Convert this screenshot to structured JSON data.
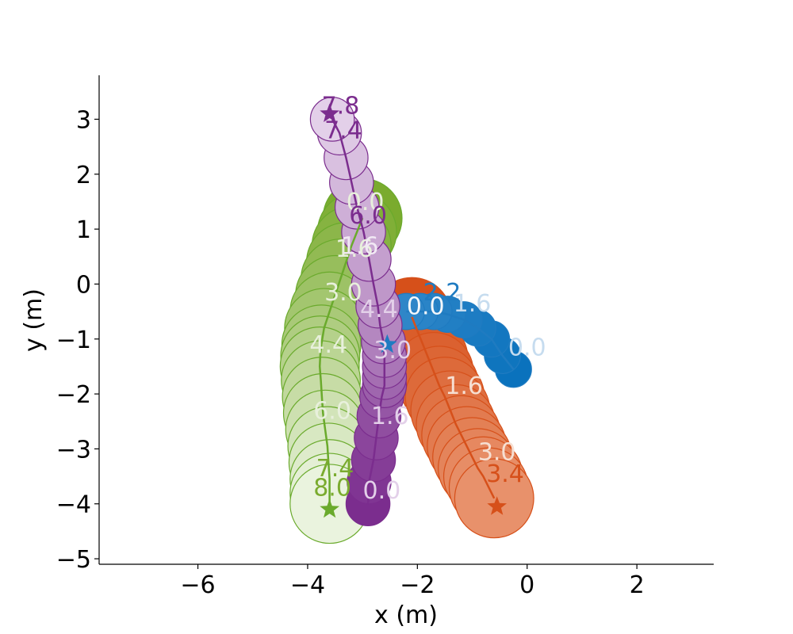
{
  "chart_data": {
    "type": "scatter",
    "title": "",
    "xlabel": "x (m)",
    "ylabel": "y (m)",
    "xlim": [
      -7.8,
      3.4
    ],
    "ylim": [
      -5.1,
      3.8
    ],
    "xticks": [
      -6,
      -4,
      -2,
      0,
      2
    ],
    "yticks": [
      -5,
      -4,
      -3,
      -2,
      -1,
      0,
      1,
      2,
      3
    ],
    "xtick_labels": [
      "−6",
      "−4",
      "−2",
      "0",
      "2"
    ],
    "ytick_labels": [
      "−5",
      "−4",
      "−3",
      "−2",
      "−1",
      "0",
      "1",
      "2",
      "3"
    ],
    "grid": false,
    "series": [
      {
        "color": "#6aaa2c",
        "fill_start": "#7aab2e",
        "fill_end": "#eaf3de",
        "radius": 0.72,
        "goal": [
          -3.6,
          -4.1
        ],
        "points": [
          [
            -3.0,
            1.2
          ],
          [
            -3.1,
            0.95
          ],
          [
            -3.2,
            0.7
          ],
          [
            -3.3,
            0.4
          ],
          [
            -3.4,
            0.1
          ],
          [
            -3.5,
            -0.2
          ],
          [
            -3.6,
            -0.5
          ],
          [
            -3.7,
            -0.8
          ],
          [
            -3.75,
            -1.1
          ],
          [
            -3.77,
            -1.3
          ],
          [
            -3.78,
            -1.5
          ],
          [
            -3.76,
            -1.75
          ],
          [
            -3.74,
            -2.05
          ],
          [
            -3.72,
            -2.35
          ],
          [
            -3.68,
            -2.65
          ],
          [
            -3.64,
            -2.95
          ],
          [
            -3.62,
            -3.25
          ],
          [
            -3.6,
            -3.55
          ],
          [
            -3.6,
            -3.8
          ],
          [
            -3.6,
            -4.0
          ]
        ],
        "labels": [
          {
            "t": "0.0",
            "x": -2.95,
            "y": 1.35,
            "c": "#e8f0dc"
          },
          {
            "t": "1.6",
            "x": -3.15,
            "y": 0.5,
            "c": "#e8f0dc"
          },
          {
            "t": "3.0",
            "x": -3.35,
            "y": -0.3,
            "c": "#e8f0dc"
          },
          {
            "t": "4.4",
            "x": -3.62,
            "y": -1.25,
            "c": "#e8f0dc"
          },
          {
            "t": "6.0",
            "x": -3.55,
            "y": -2.45,
            "c": "#e8f0dc"
          },
          {
            "t": "7.4",
            "x": -3.5,
            "y": -3.5,
            "c": "#7aab2e"
          },
          {
            "t": "8.0",
            "x": -3.55,
            "y": -3.85,
            "c": "#7aab2e"
          }
        ]
      },
      {
        "color": "#d6501a",
        "fill_start": "#d6501a",
        "fill_end": "#e8916b",
        "radius": 0.72,
        "goal": [
          -0.55,
          -4.05
        ],
        "points": [
          [
            -2.1,
            -0.6
          ],
          [
            -2.0,
            -0.85
          ],
          [
            -1.9,
            -1.1
          ],
          [
            -1.8,
            -1.35
          ],
          [
            -1.7,
            -1.6
          ],
          [
            -1.6,
            -1.85
          ],
          [
            -1.5,
            -2.05
          ],
          [
            -1.4,
            -2.3
          ],
          [
            -1.3,
            -2.55
          ],
          [
            -1.2,
            -2.75
          ],
          [
            -1.1,
            -2.95
          ],
          [
            -1.0,
            -3.15
          ],
          [
            -0.9,
            -3.35
          ],
          [
            -0.8,
            -3.5
          ],
          [
            -0.7,
            -3.7
          ],
          [
            -0.6,
            -3.9
          ]
        ],
        "labels": [
          {
            "t": "1.6",
            "x": -1.15,
            "y": -2.0,
            "c": "#f6dfd2"
          },
          {
            "t": "3.0",
            "x": -0.55,
            "y": -3.2,
            "c": "#f6dfd2"
          },
          {
            "t": "3.4",
            "x": -0.4,
            "y": -3.6,
            "c": "#d6501a"
          }
        ]
      },
      {
        "color": "#1f7bc1",
        "fill_start": "#0a72bd",
        "fill_end": "#2f86c8",
        "radius": 0.33,
        "goal": [
          -2.55,
          -1.1
        ],
        "points": [
          [
            -0.25,
            -1.55
          ],
          [
            -0.45,
            -1.3
          ],
          [
            -0.65,
            -1.0
          ],
          [
            -0.9,
            -0.8
          ],
          [
            -1.15,
            -0.65
          ],
          [
            -1.45,
            -0.55
          ],
          [
            -1.7,
            -0.5
          ],
          [
            -1.95,
            -0.5
          ],
          [
            -2.2,
            -0.5
          ]
        ],
        "labels": [
          {
            "t": "0.0",
            "x": 0.0,
            "y": -1.3,
            "c": "#c6dcef"
          },
          {
            "t": "1.6",
            "x": -1.0,
            "y": -0.5,
            "c": "#c6dcef"
          },
          {
            "t": "2.2",
            "x": -1.55,
            "y": -0.3,
            "c": "#1f7bc1"
          },
          {
            "t": "0.0",
            "x": -1.85,
            "y": -0.55,
            "c": "#f3f7fb"
          }
        ]
      },
      {
        "color": "#7b2d8e",
        "fill_start": "#7b2d8e",
        "fill_end": "#e3d0e9",
        "radius": 0.4,
        "goal": [
          -3.6,
          3.1
        ],
        "points": [
          [
            -2.9,
            -4.0
          ],
          [
            -2.88,
            -3.6
          ],
          [
            -2.8,
            -3.2
          ],
          [
            -2.75,
            -2.8
          ],
          [
            -2.7,
            -2.4
          ],
          [
            -2.65,
            -2.05
          ],
          [
            -2.6,
            -1.85
          ],
          [
            -2.6,
            -1.7
          ],
          [
            -2.6,
            -1.5
          ],
          [
            -2.6,
            -1.3
          ],
          [
            -2.62,
            -1.05
          ],
          [
            -2.68,
            -0.75
          ],
          [
            -2.72,
            -0.4
          ],
          [
            -2.8,
            0.0
          ],
          [
            -2.88,
            0.45
          ],
          [
            -2.98,
            0.95
          ],
          [
            -3.1,
            1.4
          ],
          [
            -3.2,
            1.85
          ],
          [
            -3.3,
            2.3
          ],
          [
            -3.42,
            2.75
          ],
          [
            -3.55,
            3.0
          ]
        ],
        "labels": [
          {
            "t": "0.0",
            "x": -2.65,
            "y": -3.9,
            "c": "#e3d0e9"
          },
          {
            "t": "1.6",
            "x": -2.5,
            "y": -2.55,
            "c": "#e3d0e9"
          },
          {
            "t": "3.0",
            "x": -2.45,
            "y": -1.35,
            "c": "#e3d0e9"
          },
          {
            "t": "4.4",
            "x": -2.7,
            "y": -0.6,
            "c": "#e3d0e9"
          },
          {
            "t": "1.6",
            "x": -3.05,
            "y": 0.55,
            "c": "#f1e8f4"
          },
          {
            "t": "6.0",
            "x": -2.9,
            "y": 1.1,
            "c": "#7b2d8e"
          },
          {
            "t": "7.4",
            "x": -3.35,
            "y": 2.65,
            "c": "#7b2d8e"
          },
          {
            "t": "7.8",
            "x": -3.4,
            "y": 3.1,
            "c": "#7b2d8e"
          }
        ]
      }
    ]
  }
}
